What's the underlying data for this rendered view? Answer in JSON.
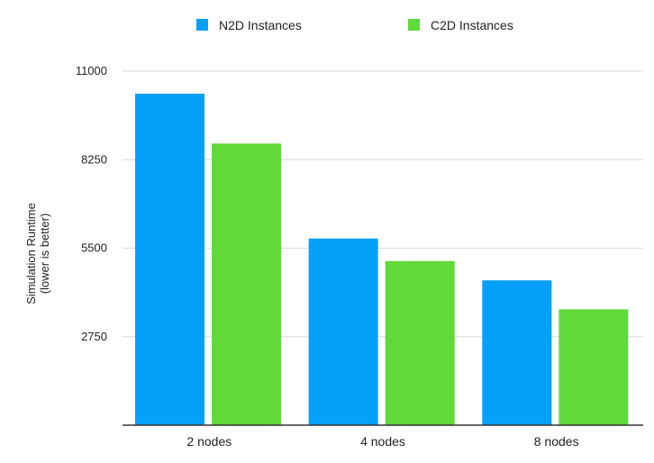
{
  "chart_data": {
    "type": "bar",
    "title": "",
    "xlabel": "",
    "ylabel_lines": [
      "Simulation Runtime",
      "(lower is better)"
    ],
    "categories": [
      "2 nodes",
      "4 nodes",
      "8 nodes"
    ],
    "series": [
      {
        "name": "N2D Instances",
        "color": "#05a0f9",
        "values": [
          10300,
          5800,
          4500
        ]
      },
      {
        "name": "C2D Instances",
        "color": "#5fda3a",
        "values": [
          8750,
          5100,
          3600
        ]
      }
    ],
    "ylim": [
      0,
      11000
    ],
    "yticks": [
      2750,
      5500,
      8250,
      11000
    ],
    "ytick_labels": [
      "2750",
      "5500",
      "8250",
      "11000"
    ],
    "grid": true,
    "legend_position": "top-center"
  }
}
